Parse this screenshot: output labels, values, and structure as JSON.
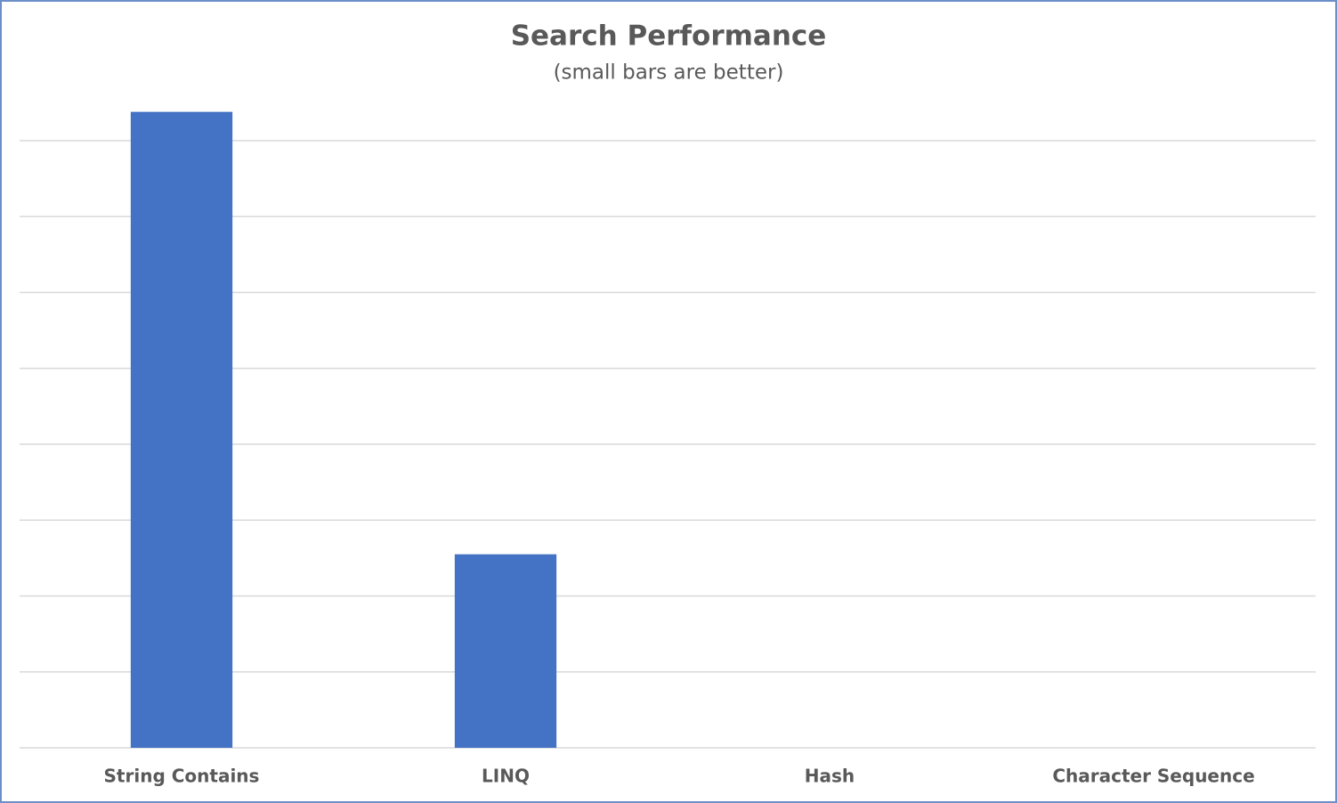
{
  "chart_data": {
    "type": "bar",
    "title": "Search Performance",
    "subtitle": "(small bars are better)",
    "categories": [
      "String Contains",
      "LINQ",
      "Hash",
      "Character Sequence"
    ],
    "values": [
      8.38,
      2.55,
      0,
      0
    ],
    "color": "#4472c4",
    "ylim": [
      0,
      8.5
    ],
    "yticks": [
      0,
      1,
      2,
      3,
      4,
      5,
      6,
      7,
      8
    ],
    "grid": true
  }
}
